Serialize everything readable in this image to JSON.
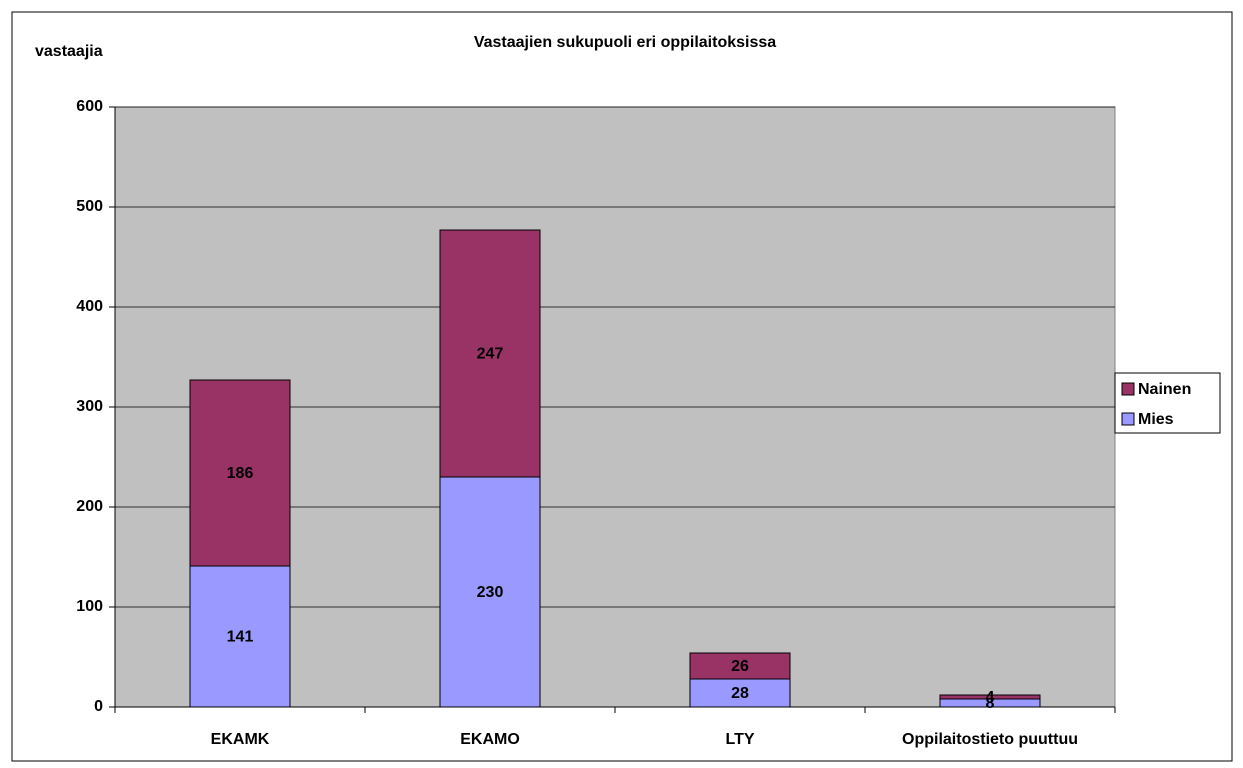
{
  "chart_data": {
    "type": "stacked_bar",
    "title": "Vastaajien sukupuoli eri oppilaitoksissa",
    "y_label": "vastaajia",
    "categories": [
      "EKAMK",
      "EKAMO",
      "LTY",
      "Oppilaitostieto puuttuu"
    ],
    "series": [
      {
        "name": "Mies",
        "color": "#9999ff",
        "values": [
          141,
          230,
          28,
          8
        ]
      },
      {
        "name": "Nainen",
        "color": "#993366",
        "values": [
          186,
          247,
          26,
          4
        ]
      }
    ],
    "ylim": [
      0,
      600
    ],
    "yticks": [
      0,
      100,
      200,
      300,
      400,
      500,
      600
    ],
    "grid": true,
    "legend": "right",
    "plot_background": "#c0c0c0"
  }
}
